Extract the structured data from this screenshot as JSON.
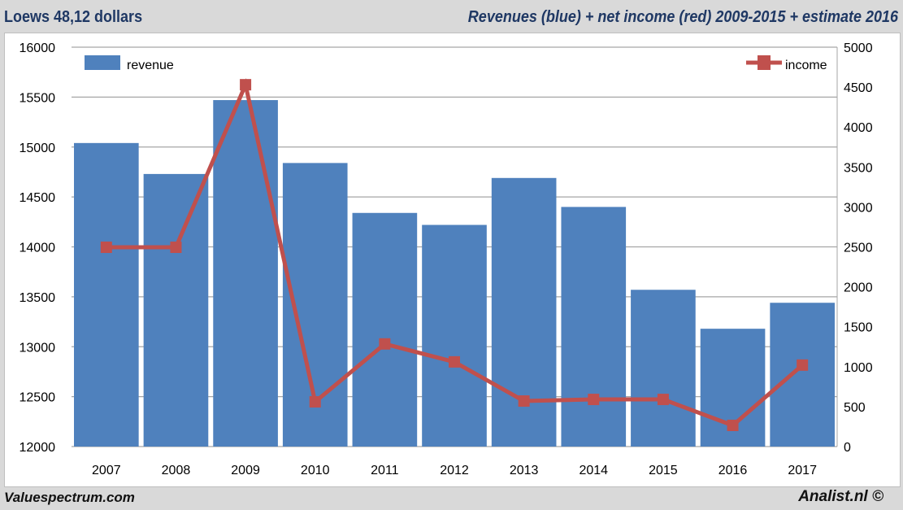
{
  "header": {
    "left": "Loews 48,12 dollars",
    "right": "Revenues (blue) + net income (red) 2009-2015 + estimate 2016"
  },
  "footer": {
    "left": "Valuespectrum.com",
    "right": "Analist.nl ©"
  },
  "chart_data": {
    "type": "bar+line",
    "categories": [
      "2007",
      "2008",
      "2009",
      "2010",
      "2011",
      "2012",
      "2013",
      "2014",
      "2015",
      "2016",
      "2017"
    ],
    "series": [
      {
        "name": "revenue",
        "type": "bar",
        "axis": "left",
        "color": "#4f81bd",
        "values": [
          15040,
          14730,
          15470,
          14840,
          14340,
          14220,
          14690,
          14400,
          13570,
          13180,
          13440
        ]
      },
      {
        "name": "income",
        "type": "line",
        "axis": "right",
        "color": "#c0504d",
        "values": [
          2495,
          2495,
          4530,
          560,
          1285,
          1060,
          570,
          590,
          590,
          265,
          1020
        ]
      }
    ],
    "left_axis": {
      "range": [
        12000,
        16000
      ],
      "ticks": [
        "12000",
        "12500",
        "13000",
        "13500",
        "14000",
        "14500",
        "15000",
        "15500",
        "16000"
      ]
    },
    "right_axis": {
      "range": [
        0,
        5000
      ],
      "ticks": [
        "0",
        "500",
        "1000",
        "1500",
        "2000",
        "2500",
        "3000",
        "3500",
        "4000",
        "4500",
        "5000"
      ]
    },
    "grid": true,
    "legend": {
      "revenue": "top-left",
      "income": "top-right"
    }
  }
}
